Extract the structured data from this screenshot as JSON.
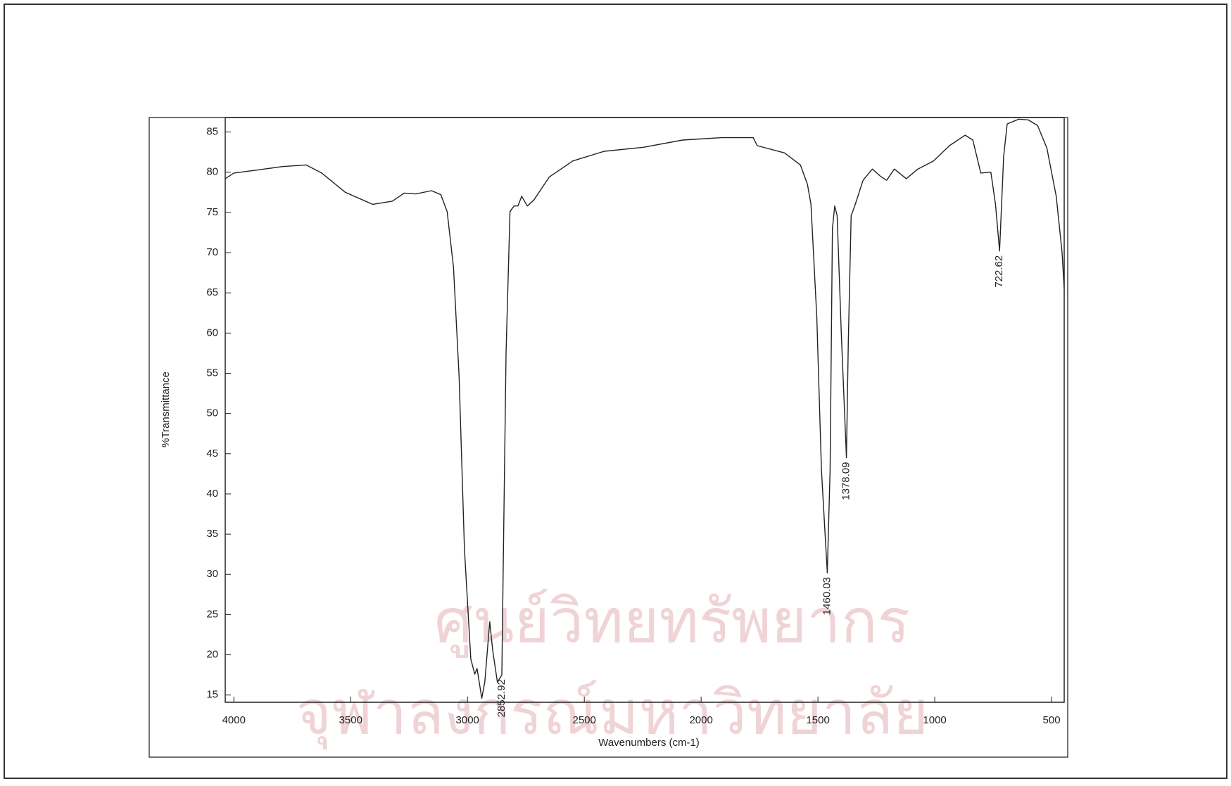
{
  "chart_data": {
    "type": "line",
    "ylabel": "%Transmittance",
    "xlabel": "Wavenumbers (cm-1)",
    "color": "#222222",
    "xlim": [
      4037,
      446
    ],
    "ylim": [
      14.1,
      86.8
    ],
    "xticks": [
      4000,
      3500,
      3000,
      2500,
      2000,
      1500,
      1000,
      500
    ],
    "yticks": [
      15,
      20,
      25,
      30,
      35,
      40,
      45,
      50,
      55,
      60,
      65,
      70,
      75,
      80,
      85
    ],
    "x": [
      4037,
      4000,
      3893,
      3792,
      3691,
      3624,
      3523,
      3406,
      3322,
      3271,
      3221,
      3154,
      3114,
      3087,
      3060,
      3036,
      3013,
      2986,
      2969,
      2959,
      2939,
      2926,
      2905,
      2892,
      2872,
      2852.92,
      2846,
      2835,
      2818,
      2801,
      2784,
      2768,
      2744,
      2717,
      2650,
      2549,
      2415,
      2247,
      2079,
      1911,
      1777,
      1760,
      1643,
      1575,
      1545,
      1530,
      1505,
      1485,
      1460.03,
      1448,
      1438,
      1428,
      1418,
      1400,
      1378.09,
      1370,
      1358,
      1340,
      1307,
      1267,
      1233,
      1206,
      1173,
      1122,
      1072,
      1005,
      937,
      870,
      837,
      803,
      760,
      740,
      722.62,
      705,
      690,
      640,
      600,
      560,
      520,
      480,
      455,
      446
    ],
    "values": [
      79.2,
      79.9,
      80.3,
      80.7,
      80.9,
      79.9,
      77.5,
      76.0,
      76.4,
      77.4,
      77.3,
      77.7,
      77.2,
      75.1,
      68.2,
      54.6,
      33.1,
      19.5,
      17.6,
      18.3,
      14.6,
      16.6,
      24.1,
      20.5,
      16.6,
      17.5,
      33.1,
      57.5,
      75.1,
      75.8,
      75.8,
      77.0,
      75.8,
      76.5,
      79.4,
      81.4,
      82.6,
      83.1,
      84.0,
      84.3,
      84.3,
      83.3,
      82.4,
      80.9,
      78.5,
      76.0,
      62.0,
      43.0,
      30.2,
      43.0,
      73.0,
      75.8,
      74.6,
      60.0,
      44.5,
      59.0,
      74.6,
      76.0,
      79.0,
      80.4,
      79.5,
      79.0,
      80.4,
      79.2,
      80.4,
      81.4,
      83.3,
      84.6,
      84.0,
      79.9,
      80.0,
      76.0,
      70.2,
      82.0,
      86.0,
      86.6,
      86.5,
      85.8,
      83.0,
      77.0,
      70.0,
      65.5
    ],
    "annotations": [
      {
        "text": "2852.92",
        "x": 2852.92,
        "y": 17.5
      },
      {
        "text": "1460.03",
        "x": 1460.03,
        "y": 30.2
      },
      {
        "text": "1378.09",
        "x": 1378.09,
        "y": 44.5
      },
      {
        "text": "722.62",
        "x": 722.62,
        "y": 70.2
      }
    ],
    "watermark": [
      "ศูนย์วิทยทรัพยากร",
      "จุฬาลงกรณ์มหาวิทยาลัย"
    ]
  }
}
